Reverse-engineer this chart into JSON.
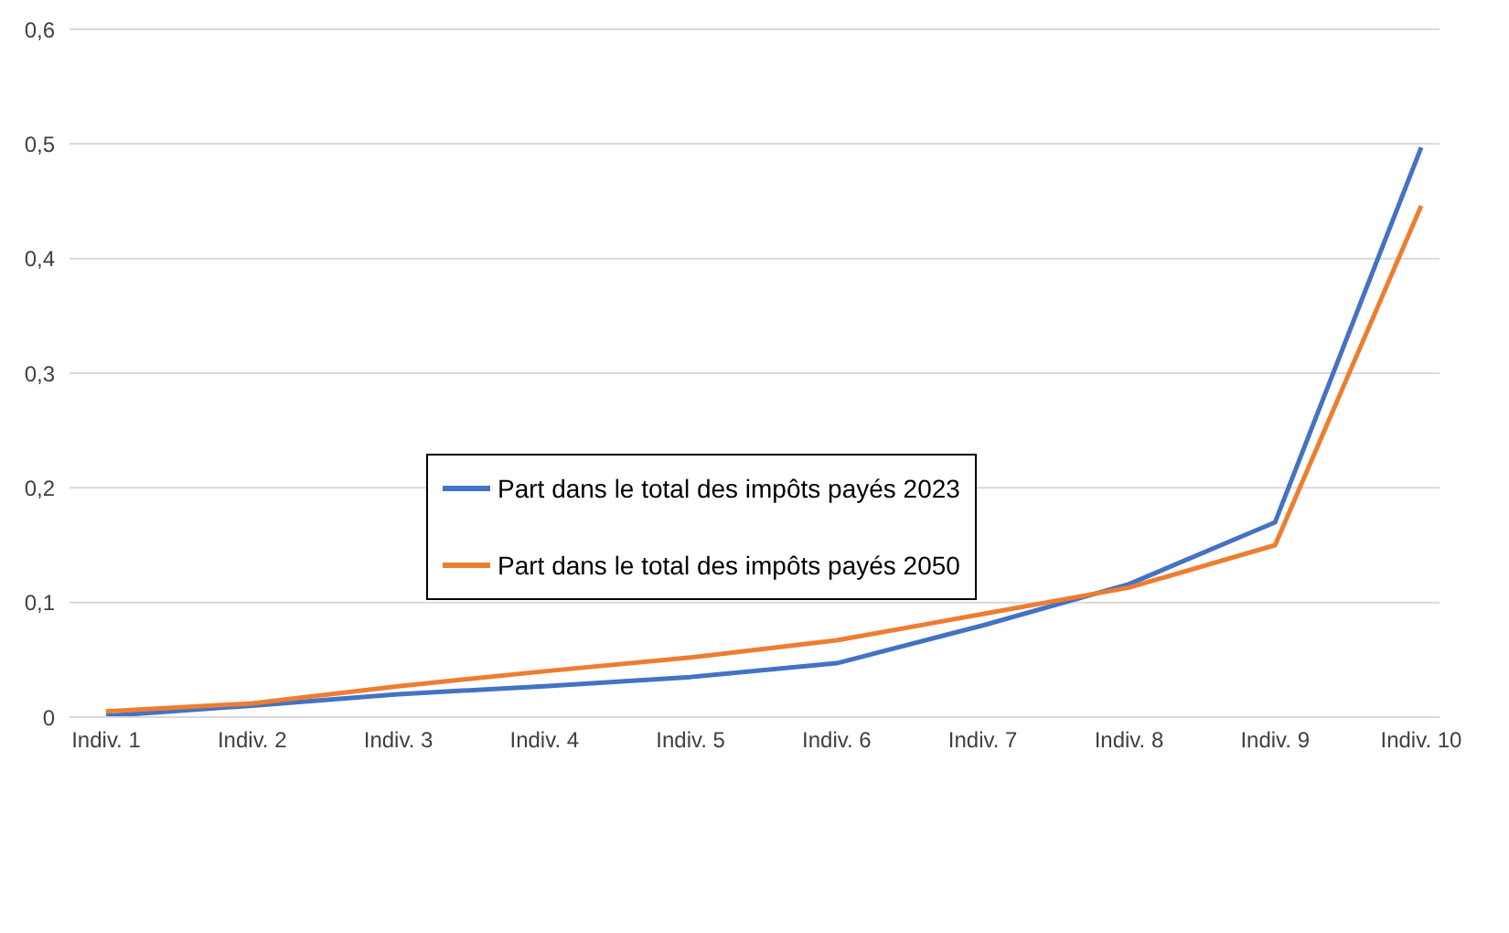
{
  "chart_data": {
    "type": "line",
    "categories": [
      "Indiv. 1",
      "Indiv. 2",
      "Indiv. 3",
      "Indiv. 4",
      "Indiv. 5",
      "Indiv. 6",
      "Indiv. 7",
      "Indiv. 8",
      "Indiv. 9",
      "Indiv. 10"
    ],
    "series": [
      {
        "name": "Part dans le total des impôts payés 2023",
        "color": "#4472c4",
        "values": [
          0.001,
          0.01,
          0.02,
          0.027,
          0.035,
          0.047,
          0.08,
          0.116,
          0.17,
          0.497
        ]
      },
      {
        "name": "Part dans le total des impôts payés 2050",
        "color": "#ed7d31",
        "values": [
          0.005,
          0.012,
          0.027,
          0.04,
          0.052,
          0.067,
          0.09,
          0.113,
          0.15,
          0.446
        ]
      }
    ],
    "ylim": [
      0,
      0.6
    ],
    "yticks": [
      0,
      {
        "value": 0.1,
        "label": "0,1"
      },
      {
        "value": 0.2,
        "label": "0,2"
      },
      {
        "value": 0.3,
        "label": "0,3"
      },
      {
        "value": 0.4,
        "label": "0,4"
      },
      {
        "value": 0.5,
        "label": "0,5"
      },
      {
        "value": 0.6,
        "label": "0,6"
      }
    ],
    "grid": "y",
    "legend": "center",
    "marker": "none",
    "line_style": "solid"
  }
}
